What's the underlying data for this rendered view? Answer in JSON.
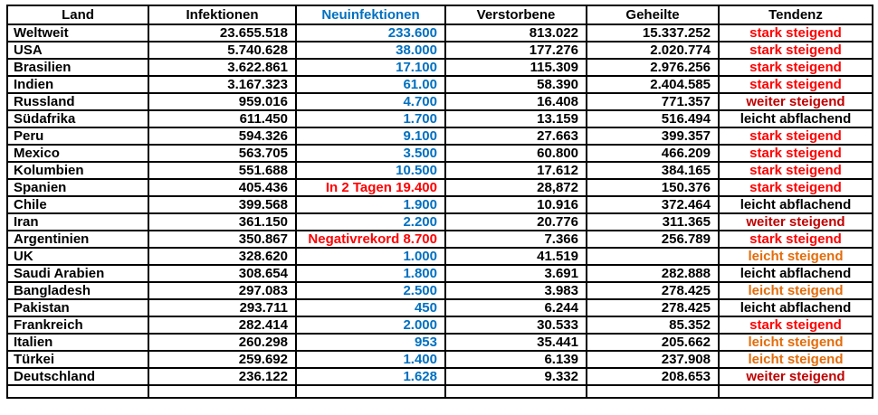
{
  "colors": {
    "black": "#000000",
    "blue": "#0070C0",
    "red": "#FF0000",
    "darkred": "#C00000",
    "orange": "#E36C0A",
    "border": "#000000",
    "background": "#FFFFFF"
  },
  "table": {
    "columns": [
      {
        "key": "land",
        "label": "Land"
      },
      {
        "key": "infektionen",
        "label": "Infektionen"
      },
      {
        "key": "neuinfektionen",
        "label": "Neuinfektionen"
      },
      {
        "key": "verstorbene",
        "label": "Verstorbene"
      },
      {
        "key": "geheilte",
        "label": "Geheilte"
      },
      {
        "key": "tendenz",
        "label": "Tendenz"
      }
    ],
    "rows": [
      {
        "land": "Weltweit",
        "infektionen": "23.655.518",
        "neuinfektionen": "233.600",
        "neu_color": "blue",
        "verstorbene": "813.022",
        "geheilte": "15.337.252",
        "tendenz": "stark steigend",
        "tendenz_color": "red"
      },
      {
        "land": "USA",
        "infektionen": "5.740.628",
        "neuinfektionen": "38.000",
        "neu_color": "blue",
        "verstorbene": "177.276",
        "geheilte": "2.020.774",
        "tendenz": "stark steigend",
        "tendenz_color": "red"
      },
      {
        "land": "Brasilien",
        "infektionen": "3.622.861",
        "neuinfektionen": "17.100",
        "neu_color": "blue",
        "verstorbene": "115.309",
        "geheilte": "2.976.256",
        "tendenz": "stark steigend",
        "tendenz_color": "red"
      },
      {
        "land": "Indien",
        "infektionen": "3.167.323",
        "neuinfektionen": "61.00",
        "neu_color": "blue",
        "verstorbene": "58.390",
        "geheilte": "2.404.585",
        "tendenz": "stark steigend",
        "tendenz_color": "red"
      },
      {
        "land": "Russland",
        "infektionen": "959.016",
        "neuinfektionen": "4.700",
        "neu_color": "blue",
        "verstorbene": "16.408",
        "geheilte": "771.357",
        "tendenz": "weiter steigend",
        "tendenz_color": "darkred"
      },
      {
        "land": "Südafrika",
        "infektionen": "611.450",
        "neuinfektionen": "1.700",
        "neu_color": "blue",
        "verstorbene": "13.159",
        "geheilte": "516.494",
        "tendenz": "leicht abflachend",
        "tendenz_color": "black"
      },
      {
        "land": "Peru",
        "infektionen": "594.326",
        "neuinfektionen": "9.100",
        "neu_color": "blue",
        "verstorbene": "27.663",
        "geheilte": "399.357",
        "tendenz": "stark steigend",
        "tendenz_color": "red"
      },
      {
        "land": "Mexico",
        "infektionen": "563.705",
        "neuinfektionen": "3.500",
        "neu_color": "blue",
        "verstorbene": "60.800",
        "geheilte": "466.209",
        "tendenz": "stark steigend",
        "tendenz_color": "red"
      },
      {
        "land": "Kolumbien",
        "infektionen": "551.688",
        "neuinfektionen": "10.500",
        "neu_color": "blue",
        "verstorbene": "17.612",
        "geheilte": "384.165",
        "tendenz": "stark steigend",
        "tendenz_color": "red"
      },
      {
        "land": "Spanien",
        "infektionen": "405.436",
        "neuinfektionen": "In 2 Tagen 19.400",
        "neu_color": "red",
        "verstorbene": "28,872",
        "geheilte": "150.376",
        "tendenz": "stark steigend",
        "tendenz_color": "red"
      },
      {
        "land": "Chile",
        "infektionen": "399.568",
        "neuinfektionen": "1.900",
        "neu_color": "blue",
        "verstorbene": "10.916",
        "geheilte": "372.464",
        "tendenz": "leicht abflachend",
        "tendenz_color": "black"
      },
      {
        "land": "Iran",
        "infektionen": "361.150",
        "neuinfektionen": "2.200",
        "neu_color": "blue",
        "verstorbene": "20.776",
        "geheilte": "311.365",
        "tendenz": "weiter steigend",
        "tendenz_color": "darkred"
      },
      {
        "land": "Argentinien",
        "infektionen": "350.867",
        "neuinfektionen": "Negativrekord 8.700",
        "neu_color": "red",
        "verstorbene": "7.366",
        "geheilte": "256.789",
        "tendenz": "stark steigend",
        "tendenz_color": "red"
      },
      {
        "land": "UK",
        "infektionen": "328.620",
        "neuinfektionen": "1.000",
        "neu_color": "blue",
        "verstorbene": "41.519",
        "geheilte": "",
        "tendenz": "leicht steigend",
        "tendenz_color": "orange"
      },
      {
        "land": "Saudi Arabien",
        "infektionen": "308.654",
        "neuinfektionen": "1.800",
        "neu_color": "blue",
        "verstorbene": "3.691",
        "geheilte": "282.888",
        "tendenz": "leicht abflachend",
        "tendenz_color": "black"
      },
      {
        "land": "Bangladesh",
        "infektionen": "297.083",
        "neuinfektionen": "2.500",
        "neu_color": "blue",
        "verstorbene": "3.983",
        "geheilte": "278.425",
        "tendenz": "leicht steigend",
        "tendenz_color": "orange",
        "misspelled": true
      },
      {
        "land": "Pakistan",
        "infektionen": "293.711",
        "neuinfektionen": "450",
        "neu_color": "blue",
        "verstorbene": "6.244",
        "geheilte": "278.425",
        "tendenz": "leicht abflachend",
        "tendenz_color": "black"
      },
      {
        "land": "Frankreich",
        "infektionen": "282.414",
        "neuinfektionen": "2.000",
        "neu_color": "blue",
        "verstorbene": "30.533",
        "geheilte": "85.352",
        "tendenz": "stark steigend",
        "tendenz_color": "red"
      },
      {
        "land": "Italien",
        "infektionen": "260.298",
        "neuinfektionen": "953",
        "neu_color": "blue",
        "verstorbene": "35.441",
        "geheilte": "205.662",
        "tendenz": "leicht steigend",
        "tendenz_color": "orange"
      },
      {
        "land": "Türkei",
        "infektionen": "259.692",
        "neuinfektionen": "1.400",
        "neu_color": "blue",
        "verstorbene": "6.139",
        "geheilte": "237.908",
        "tendenz": "leicht steigend",
        "tendenz_color": "orange"
      },
      {
        "land": "Deutschland",
        "infektionen": "236.122",
        "neuinfektionen": "1.628",
        "neu_color": "blue",
        "verstorbene": "9.332",
        "geheilte": "208.653",
        "tendenz": "weiter steigend",
        "tendenz_color": "darkred"
      }
    ]
  }
}
